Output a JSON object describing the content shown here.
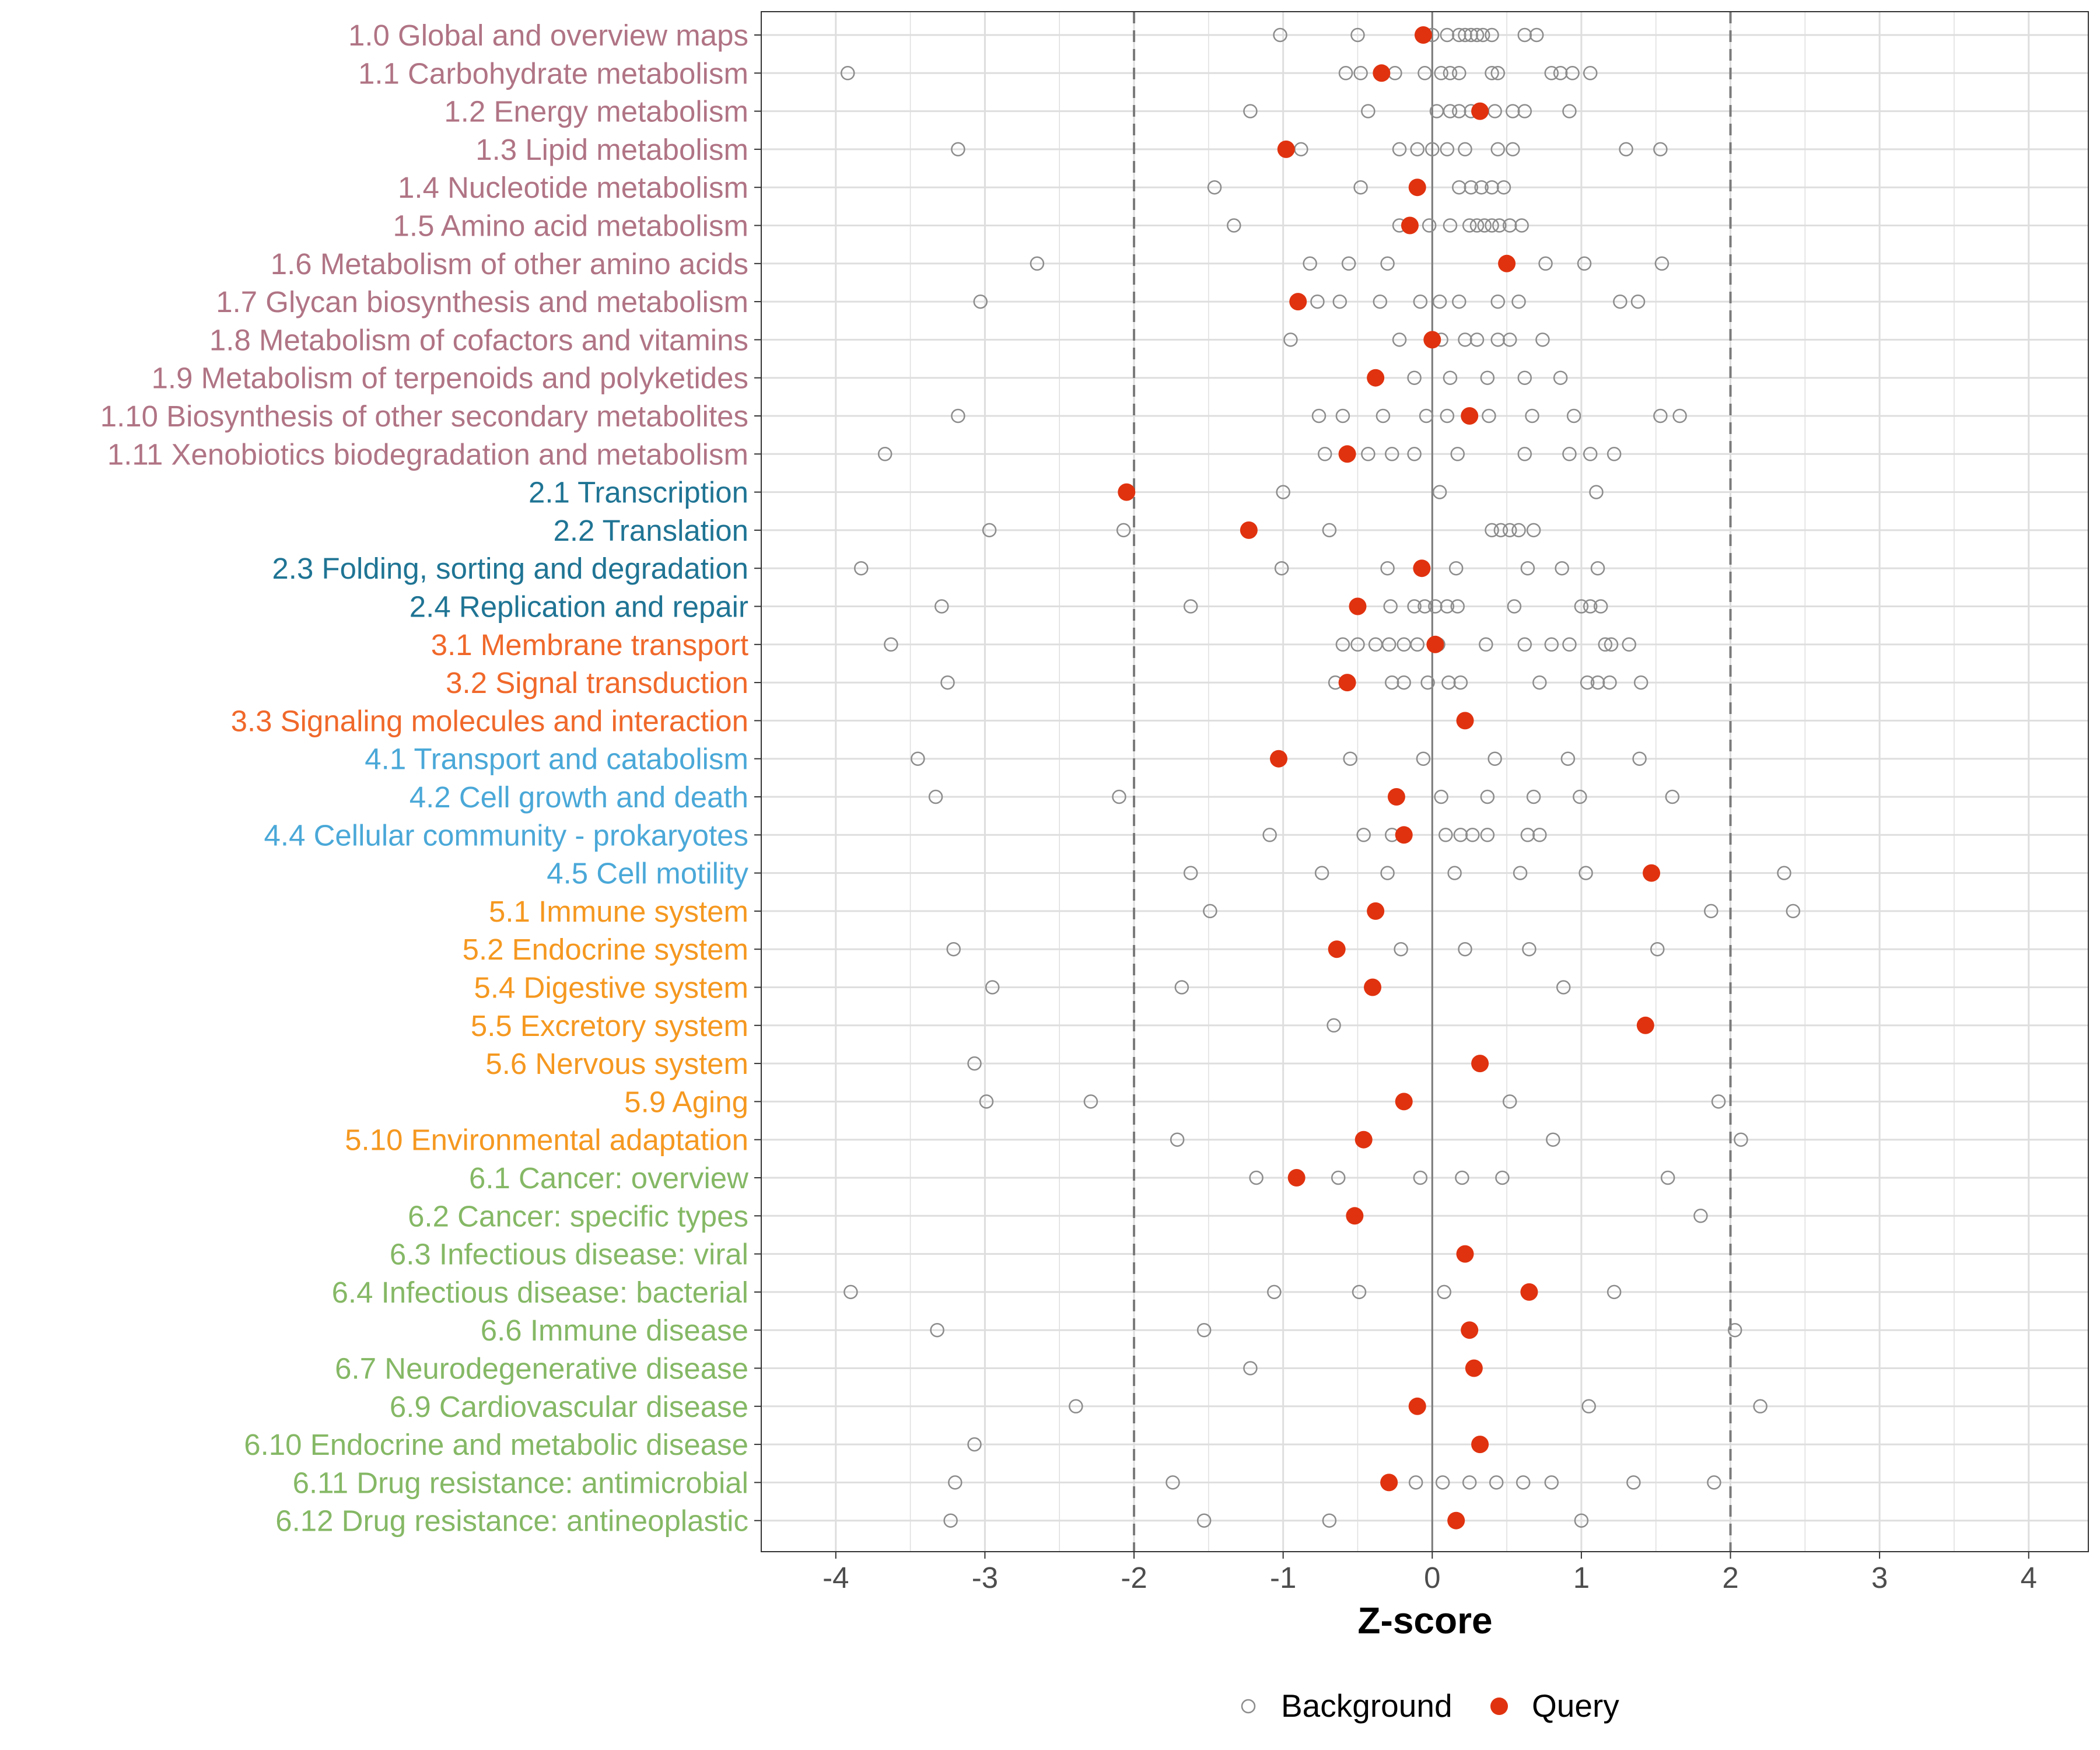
{
  "chart_data": {
    "type": "scatter",
    "title": "",
    "xlabel": "Z-score",
    "ylabel": "",
    "xlim": [
      -4.5,
      4.4
    ],
    "xticks": [
      -4,
      -3,
      -2,
      -1,
      0,
      1,
      2,
      3,
      4
    ],
    "xtick_labels": [
      "-4",
      "-3",
      "-2",
      "-1",
      "0",
      "1",
      "2",
      "3",
      "4"
    ],
    "threshold_lines": [
      -2,
      2
    ],
    "zero_line": 0,
    "grid": true,
    "legend": {
      "placement": "bottom",
      "entries": [
        {
          "name": "Background",
          "marker": "open-circle",
          "color": "#8c8c8c"
        },
        {
          "name": "Query",
          "marker": "filled-circle",
          "color": "#e0320f"
        }
      ]
    },
    "group_colors": {
      "1": "#b07485",
      "2": "#1f7494",
      "3": "#f0682a",
      "4": "#4aa8d8",
      "5": "#f59820",
      "6": "#85b865"
    },
    "categories": [
      {
        "label": "1.0 Global and overview maps",
        "group": "1",
        "query": -0.06,
        "background": [
          -1.02,
          -0.5,
          0.0,
          0.1,
          0.18,
          0.22,
          0.26,
          0.3,
          0.34,
          0.4,
          0.62,
          0.7
        ]
      },
      {
        "label": "1.1 Carbohydrate metabolism",
        "group": "1",
        "query": -0.34,
        "background": [
          -3.92,
          -0.58,
          -0.48,
          -0.25,
          -0.05,
          0.06,
          0.12,
          0.18,
          0.4,
          0.44,
          0.8,
          0.86,
          0.94,
          1.06
        ]
      },
      {
        "label": "1.2 Energy metabolism",
        "group": "1",
        "query": 0.32,
        "background": [
          -1.22,
          -0.43,
          0.03,
          0.12,
          0.18,
          0.26,
          0.42,
          0.54,
          0.62,
          0.92
        ]
      },
      {
        "label": "1.3 Lipid metabolism",
        "group": "1",
        "query": -0.98,
        "background": [
          -3.18,
          -0.88,
          -0.22,
          -0.1,
          0.0,
          0.1,
          0.22,
          0.44,
          0.54,
          1.3,
          1.53
        ]
      },
      {
        "label": "1.4 Nucleotide metabolism",
        "group": "1",
        "query": -0.1,
        "background": [
          -1.46,
          -0.48,
          0.18,
          0.26,
          0.33,
          0.4,
          0.48
        ]
      },
      {
        "label": "1.5 Amino acid metabolism",
        "group": "1",
        "query": -0.15,
        "background": [
          -1.33,
          -0.22,
          -0.02,
          0.12,
          0.25,
          0.3,
          0.35,
          0.4,
          0.45,
          0.52,
          0.6
        ]
      },
      {
        "label": "1.6 Metabolism of other amino acids",
        "group": "1",
        "query": 0.5,
        "background": [
          -2.65,
          -0.82,
          -0.56,
          -0.3,
          0.76,
          1.02,
          1.54
        ]
      },
      {
        "label": "1.7 Glycan biosynthesis and metabolism",
        "group": "1",
        "query": -0.9,
        "background": [
          -3.03,
          -0.77,
          -0.62,
          -0.35,
          -0.08,
          0.05,
          0.18,
          0.44,
          0.58,
          1.26,
          1.38
        ]
      },
      {
        "label": "1.8 Metabolism of cofactors and vitamins",
        "group": "1",
        "query": 0.0,
        "background": [
          -0.95,
          -0.22,
          0.06,
          0.22,
          0.3,
          0.44,
          0.52,
          0.74
        ]
      },
      {
        "label": "1.9 Metabolism of terpenoids and polyketides",
        "group": "1",
        "query": -0.38,
        "background": [
          -0.12,
          0.12,
          0.37,
          0.62,
          0.86
        ]
      },
      {
        "label": "1.10 Biosynthesis of other secondary metabolites",
        "group": "1",
        "query": 0.25,
        "background": [
          -3.18,
          -0.76,
          -0.6,
          -0.33,
          -0.04,
          0.1,
          0.38,
          0.67,
          0.95,
          1.53,
          1.66
        ]
      },
      {
        "label": "1.11 Xenobiotics biodegradation and metabolism",
        "group": "1",
        "query": -0.57,
        "background": [
          -3.67,
          -0.72,
          -0.43,
          -0.27,
          -0.12,
          0.17,
          0.62,
          0.92,
          1.06,
          1.22
        ]
      },
      {
        "label": "2.1 Transcription",
        "group": "2",
        "query": -2.05,
        "background": [
          -1.0,
          0.05,
          1.1
        ]
      },
      {
        "label": "2.2 Translation",
        "group": "2",
        "query": -1.23,
        "background": [
          -2.97,
          -2.07,
          -0.69,
          0.4,
          0.46,
          0.52,
          0.58,
          0.68
        ]
      },
      {
        "label": "2.3 Folding, sorting and degradation",
        "group": "2",
        "query": -0.07,
        "background": [
          -3.83,
          -1.01,
          -0.3,
          0.16,
          0.64,
          0.87,
          1.11
        ]
      },
      {
        "label": "2.4 Replication and repair",
        "group": "2",
        "query": -0.5,
        "background": [
          -3.29,
          -1.62,
          -0.28,
          -0.12,
          -0.05,
          0.02,
          0.1,
          0.17,
          0.55,
          1.0,
          1.06,
          1.13
        ]
      },
      {
        "label": "3.1 Membrane transport",
        "group": "3",
        "query": 0.02,
        "background": [
          -3.63,
          -0.6,
          -0.5,
          -0.38,
          -0.29,
          -0.19,
          -0.1,
          0.04,
          0.36,
          0.62,
          0.8,
          0.92,
          1.16,
          1.2,
          1.32
        ]
      },
      {
        "label": "3.2 Signal transduction",
        "group": "3",
        "query": -0.57,
        "background": [
          -3.25,
          -0.65,
          -0.27,
          -0.19,
          -0.03,
          0.11,
          0.19,
          0.72,
          1.04,
          1.11,
          1.19,
          1.4
        ]
      },
      {
        "label": "3.3 Signaling molecules and interaction",
        "group": "3",
        "query": 0.22,
        "background": []
      },
      {
        "label": "4.1 Transport and catabolism",
        "group": "4",
        "query": -1.03,
        "background": [
          -3.45,
          -0.55,
          -0.06,
          0.42,
          0.91,
          1.39
        ]
      },
      {
        "label": "4.2 Cell growth and death",
        "group": "4",
        "query": -0.24,
        "background": [
          -3.33,
          -2.1,
          0.06,
          0.37,
          0.68,
          0.99,
          1.61
        ]
      },
      {
        "label": "4.4 Cellular community - prokaryotes",
        "group": "4",
        "query": -0.19,
        "background": [
          -1.09,
          -0.46,
          -0.27,
          0.09,
          0.19,
          0.27,
          0.37,
          0.64,
          0.72
        ]
      },
      {
        "label": "4.5 Cell motility",
        "group": "4",
        "query": 1.47,
        "background": [
          -1.62,
          -0.74,
          -0.3,
          0.15,
          0.59,
          1.03,
          2.36
        ]
      },
      {
        "label": "5.1 Immune system",
        "group": "5",
        "query": -0.38,
        "background": [
          -1.49,
          1.87,
          2.42
        ]
      },
      {
        "label": "5.2 Endocrine system",
        "group": "5",
        "query": -0.64,
        "background": [
          -3.21,
          -0.21,
          0.22,
          0.65,
          1.51
        ]
      },
      {
        "label": "5.4 Digestive system",
        "group": "5",
        "query": -0.4,
        "background": [
          -2.95,
          -1.68,
          0.88
        ]
      },
      {
        "label": "5.5 Excretory system",
        "group": "5",
        "query": 1.43,
        "background": [
          -0.66
        ]
      },
      {
        "label": "5.6 Nervous system",
        "group": "5",
        "query": 0.32,
        "background": [
          -3.07
        ]
      },
      {
        "label": "5.9 Aging",
        "group": "5",
        "query": -0.19,
        "background": [
          -2.99,
          -2.29,
          0.52,
          1.92
        ]
      },
      {
        "label": "5.10 Environmental adaptation",
        "group": "5",
        "query": -0.46,
        "background": [
          -1.71,
          0.81,
          2.07
        ]
      },
      {
        "label": "6.1 Cancer: overview",
        "group": "6",
        "query": -0.91,
        "background": [
          -1.18,
          -0.63,
          -0.08,
          0.2,
          0.47,
          1.58
        ]
      },
      {
        "label": "6.2 Cancer: specific types",
        "group": "6",
        "query": -0.52,
        "background": [
          1.8
        ]
      },
      {
        "label": "6.3 Infectious disease: viral",
        "group": "6",
        "query": 0.22,
        "background": []
      },
      {
        "label": "6.4 Infectious disease: bacterial",
        "group": "6",
        "query": 0.65,
        "background": [
          -3.9,
          -1.06,
          -0.49,
          0.08,
          1.22
        ]
      },
      {
        "label": "6.6 Immune disease",
        "group": "6",
        "query": 0.25,
        "background": [
          -3.32,
          -1.53,
          2.03
        ]
      },
      {
        "label": "6.7 Neurodegenerative disease",
        "group": "6",
        "query": 0.28,
        "background": [
          -1.22
        ]
      },
      {
        "label": "6.9 Cardiovascular disease",
        "group": "6",
        "query": -0.1,
        "background": [
          -2.39,
          1.05,
          2.2
        ]
      },
      {
        "label": "6.10 Endocrine and metabolic disease",
        "group": "6",
        "query": 0.32,
        "background": [
          -3.07
        ]
      },
      {
        "label": "6.11 Drug resistance: antimicrobial",
        "group": "6",
        "query": -0.29,
        "background": [
          -3.2,
          -1.74,
          -0.11,
          0.07,
          0.25,
          0.43,
          0.61,
          0.8,
          1.35,
          1.89
        ]
      },
      {
        "label": "6.12 Drug resistance: antineoplastic",
        "group": "6",
        "query": 0.16,
        "background": [
          -3.23,
          -1.53,
          -0.69,
          1.0
        ]
      }
    ]
  }
}
